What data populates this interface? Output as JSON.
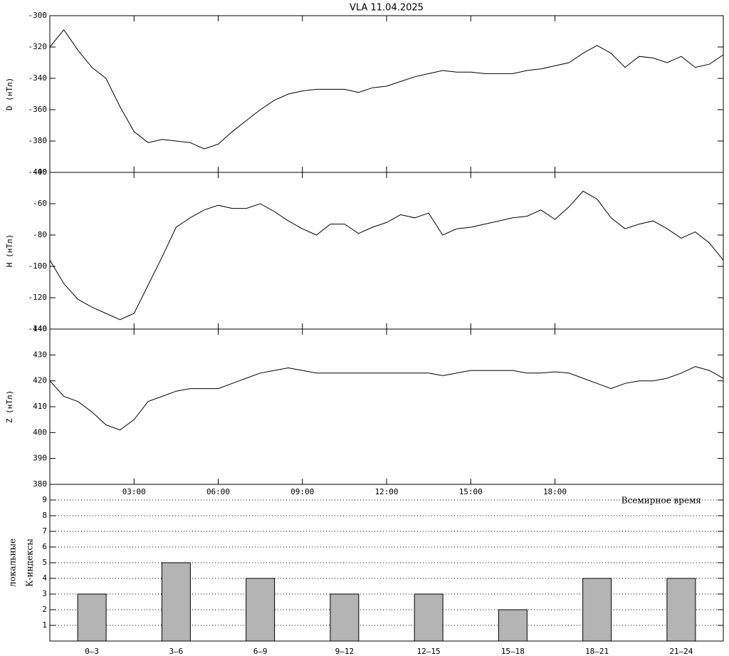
{
  "chart_data": [
    {
      "type": "line",
      "title": "VLA   11.04.2025",
      "ylabel": "D (нТл)",
      "color": "#000000",
      "x": [
        0,
        0.5,
        1,
        1.5,
        2,
        2.5,
        3,
        3.5,
        4,
        4.5,
        5,
        5.5,
        6,
        6.5,
        7,
        7.5,
        8,
        8.5,
        9,
        9.5,
        10,
        10.5,
        11,
        11.5,
        12,
        12.5,
        13,
        13.5,
        14,
        14.5,
        15,
        15.5,
        16,
        16.5,
        17,
        17.5,
        18,
        18.5,
        19,
        19.5,
        20,
        20.5,
        21,
        21.5,
        22,
        22.5,
        23,
        23.5,
        24
      ],
      "values": [
        -320,
        -309,
        -322,
        -333,
        -340,
        -358,
        -374,
        -381,
        -379,
        -380,
        -381,
        -385,
        -382,
        -374,
        -367,
        -360,
        -354,
        -350,
        -348,
        -347,
        -347,
        -347,
        -349,
        -346,
        -345,
        -342,
        -339,
        -337,
        -335,
        -336,
        -336,
        -337,
        -337,
        -337,
        -335,
        -334,
        -332,
        -330,
        -324,
        -319,
        -324,
        -333,
        -326,
        -327,
        -330,
        -326,
        -333,
        -331,
        -325
      ],
      "xlim": [
        0,
        24
      ],
      "ylim": [
        -400,
        -300
      ],
      "yticks": [
        -400,
        -380,
        -360,
        -340,
        -320,
        -300
      ]
    },
    {
      "type": "line",
      "ylabel": "H (нТл)",
      "color": "#000000",
      "x": [
        0,
        0.5,
        1,
        1.5,
        2,
        2.5,
        3,
        3.5,
        4,
        4.5,
        5,
        5.5,
        6,
        6.5,
        7,
        7.5,
        8,
        8.5,
        9,
        9.5,
        10,
        10.5,
        11,
        11.5,
        12,
        12.5,
        13,
        13.5,
        14,
        14.5,
        15,
        15.5,
        16,
        16.5,
        17,
        17.5,
        18,
        18.5,
        19,
        19.5,
        20,
        20.5,
        21,
        21.5,
        22,
        22.5,
        23,
        23.5,
        24
      ],
      "values": [
        -96,
        -111,
        -121,
        -126,
        -130,
        -134,
        -130,
        -112,
        -94,
        -75,
        -69,
        -64,
        -61,
        -63,
        -63,
        -60,
        -65,
        -71,
        -76,
        -80,
        -73,
        -73,
        -79,
        -75,
        -72,
        -67,
        -69,
        -66,
        -80,
        -76,
        -75,
        -73,
        -71,
        -69,
        -68,
        -64,
        -70,
        -62,
        -52,
        -57,
        -69,
        -76,
        -73,
        -71,
        -76,
        -82,
        -78,
        -85,
        -96
      ],
      "xlim": [
        0,
        24
      ],
      "ylim": [
        -140,
        -40
      ],
      "yticks": [
        -140,
        -120,
        -100,
        -80,
        -60,
        -40
      ]
    },
    {
      "type": "line",
      "ylabel": "Z (нТл)",
      "color": "#000000",
      "xlabel": "Всемирное время",
      "x": [
        0,
        0.5,
        1,
        1.5,
        2,
        2.5,
        3,
        3.5,
        4,
        4.5,
        5,
        5.5,
        6,
        6.5,
        7,
        7.5,
        8,
        8.5,
        9,
        9.5,
        10,
        10.5,
        11,
        11.5,
        12,
        12.5,
        13,
        13.5,
        14,
        14.5,
        15,
        15.5,
        16,
        16.5,
        17,
        17.5,
        18,
        18.5,
        19,
        19.5,
        20,
        20.5,
        21,
        21.5,
        22,
        22.5,
        23,
        23.5,
        24
      ],
      "values": [
        420,
        414,
        412,
        408,
        403,
        401,
        405,
        412,
        414,
        416,
        417,
        417,
        417,
        419,
        421,
        423,
        424,
        425,
        424,
        423,
        423,
        423,
        423,
        423,
        423,
        423,
        423,
        423,
        422,
        423,
        424,
        424,
        424,
        424,
        423,
        423,
        423.5,
        423,
        421,
        419,
        417,
        419,
        420,
        420,
        421,
        423,
        425.5,
        424,
        421
      ],
      "xlim": [
        0,
        24
      ],
      "ylim": [
        380,
        440
      ],
      "yticks": [
        380,
        390,
        400,
        410,
        420,
        430,
        440
      ],
      "xticks": [
        {
          "value": 3,
          "label": "03:00"
        },
        {
          "value": 6,
          "label": "06:00"
        },
        {
          "value": 9,
          "label": "09:00"
        },
        {
          "value": 12,
          "label": "12:00"
        },
        {
          "value": 15,
          "label": "15:00"
        },
        {
          "value": 18,
          "label": "18:00"
        }
      ]
    },
    {
      "type": "bar",
      "ylabel": [
        "локальные",
        "К-индексы"
      ],
      "color": "#b4b4b4",
      "categories": [
        "0–3",
        "3–6",
        "6–9",
        "9–12",
        "12–15",
        "15–18",
        "18–21",
        "21–24"
      ],
      "values": [
        3,
        5,
        4,
        3,
        3,
        2,
        4,
        4
      ],
      "ylim": [
        0,
        10
      ],
      "yticks": [
        1,
        2,
        3,
        4,
        5,
        6,
        7,
        8,
        9
      ],
      "grid": true
    }
  ]
}
